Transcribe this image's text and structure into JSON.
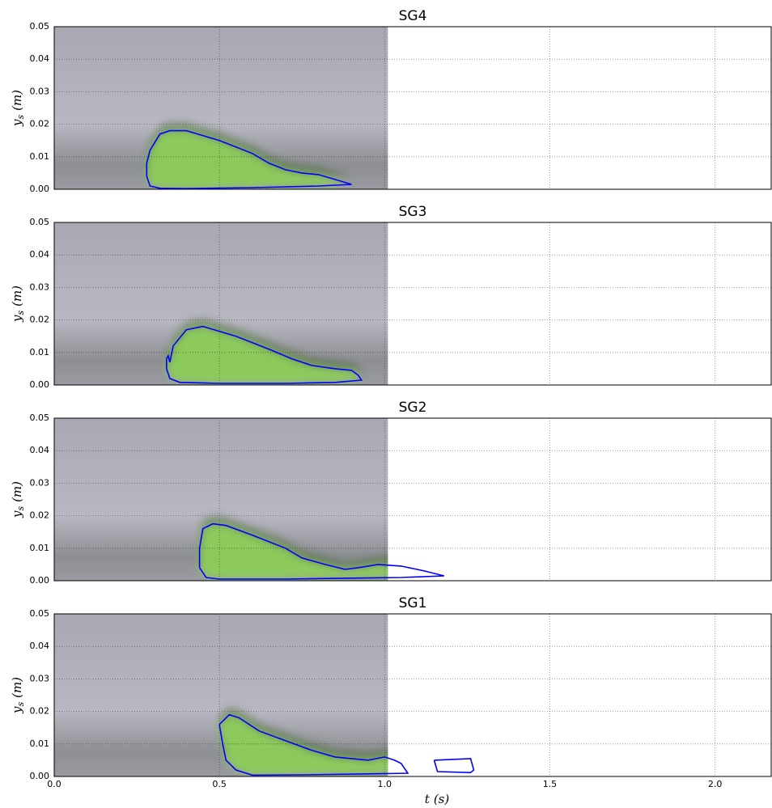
{
  "chart_data": [
    {
      "type": "line",
      "title": "SG4",
      "ylabel": "y",
      "ylabel_sub": "s",
      "ylabel_unit": "(m)",
      "xlim": [
        0,
        2.17
      ],
      "ylim": [
        0,
        0.05
      ],
      "image_xlim": [
        0,
        1.01
      ],
      "grid": true,
      "xticks": [
        0,
        0.5,
        1,
        1.5,
        2
      ],
      "yticks": [
        {
          "value": 0,
          "label": "0.00"
        },
        {
          "value": 0.01,
          "label": "0.01"
        },
        {
          "value": 0.02,
          "label": "0.02"
        },
        {
          "value": 0.03,
          "label": "0.03"
        },
        {
          "value": 0.04,
          "label": "0.04"
        },
        {
          "value": 0.05,
          "label": "0.05"
        }
      ],
      "x": [
        0.28,
        0.29,
        0.32,
        0.35,
        0.4,
        0.5,
        0.55,
        0.6,
        0.65,
        0.7,
        0.75,
        0.8,
        0.85,
        0.9,
        0.8,
        0.6,
        0.4,
        0.32,
        0.29,
        0.28,
        0.28
      ],
      "series": [
        {
          "color": "#0000ff",
          "values": [
            0.008,
            0.012,
            0.017,
            0.018,
            0.018,
            0.015,
            0.013,
            0.011,
            0.008,
            0.006,
            0.005,
            0.0045,
            0.003,
            0.0015,
            0.001,
            0.0005,
            0.0002,
            0.0003,
            0.001,
            0.004,
            0.008
          ]
        }
      ]
    },
    {
      "type": "line",
      "title": "SG3",
      "ylabel": "y",
      "ylabel_sub": "s",
      "ylabel_unit": "(m)",
      "xlim": [
        0,
        2.17
      ],
      "ylim": [
        0,
        0.05
      ],
      "image_xlim": [
        0,
        1.01
      ],
      "grid": true,
      "xticks": [
        0,
        0.5,
        1,
        1.5,
        2
      ],
      "yticks": [
        {
          "value": 0,
          "label": "0.00"
        },
        {
          "value": 0.01,
          "label": "0.01"
        },
        {
          "value": 0.02,
          "label": "0.02"
        },
        {
          "value": 0.03,
          "label": "0.03"
        },
        {
          "value": 0.04,
          "label": "0.04"
        },
        {
          "value": 0.05,
          "label": "0.05"
        }
      ],
      "x": [
        0.34,
        0.345,
        0.35,
        0.36,
        0.4,
        0.45,
        0.55,
        0.65,
        0.72,
        0.78,
        0.85,
        0.9,
        0.92,
        0.93,
        0.85,
        0.7,
        0.5,
        0.38,
        0.35,
        0.34,
        0.34
      ],
      "series": [
        {
          "color": "#0000ff",
          "values": [
            0.008,
            0.009,
            0.007,
            0.012,
            0.017,
            0.018,
            0.015,
            0.011,
            0.008,
            0.006,
            0.005,
            0.0045,
            0.003,
            0.0015,
            0.0008,
            0.0005,
            0.0005,
            0.0008,
            0.002,
            0.005,
            0.008
          ]
        }
      ]
    },
    {
      "type": "line",
      "title": "SG2",
      "ylabel": "y",
      "ylabel_sub": "s",
      "ylabel_unit": "(m)",
      "xlim": [
        0,
        2.17
      ],
      "ylim": [
        0,
        0.05
      ],
      "image_xlim": [
        0,
        1.01
      ],
      "grid": true,
      "xticks": [
        0,
        0.5,
        1,
        1.5,
        2
      ],
      "yticks": [
        {
          "value": 0,
          "label": "0.00"
        },
        {
          "value": 0.01,
          "label": "0.01"
        },
        {
          "value": 0.02,
          "label": "0.02"
        },
        {
          "value": 0.03,
          "label": "0.03"
        },
        {
          "value": 0.04,
          "label": "0.04"
        },
        {
          "value": 0.05,
          "label": "0.05"
        }
      ],
      "x": [
        0.44,
        0.45,
        0.48,
        0.52,
        0.6,
        0.7,
        0.75,
        0.82,
        0.88,
        0.92,
        0.98,
        1.05,
        1.12,
        1.18,
        1.05,
        0.9,
        0.7,
        0.5,
        0.46,
        0.44,
        0.44
      ],
      "series": [
        {
          "color": "#0000ff",
          "values": [
            0.01,
            0.016,
            0.0175,
            0.017,
            0.014,
            0.01,
            0.007,
            0.005,
            0.0035,
            0.004,
            0.005,
            0.0045,
            0.003,
            0.0015,
            0.001,
            0.0008,
            0.0005,
            0.0005,
            0.001,
            0.004,
            0.01
          ]
        }
      ]
    },
    {
      "type": "line",
      "title": "SG1",
      "ylabel": "y",
      "ylabel_sub": "s",
      "ylabel_unit": "(m)",
      "xlabel": "t",
      "xlabel_unit": "(s)",
      "xlim": [
        0,
        2.17
      ],
      "ylim": [
        0,
        0.05
      ],
      "image_xlim": [
        0,
        1.01
      ],
      "grid": true,
      "xticks": [
        {
          "value": 0,
          "label": "0.0"
        },
        0.5,
        {
          "value": 1,
          "label": "1.0"
        },
        1.5,
        {
          "value": 2,
          "label": "2.0"
        }
      ],
      "yticks": [
        {
          "value": 0,
          "label": "0.00"
        },
        {
          "value": 0.01,
          "label": "0.01"
        },
        {
          "value": 0.02,
          "label": "0.02"
        },
        {
          "value": 0.03,
          "label": "0.03"
        },
        {
          "value": 0.04,
          "label": "0.04"
        },
        {
          "value": 0.05,
          "label": "0.05"
        }
      ],
      "x": [
        0.5,
        0.53,
        0.56,
        0.62,
        0.7,
        0.78,
        0.85,
        0.95,
        1.0,
        1.03,
        1.05,
        1.07,
        0.95,
        0.75,
        0.6,
        0.55,
        0.52,
        0.51,
        0.5,
        null,
        1.15,
        1.26,
        1.27,
        1.26,
        1.16,
        1.15
      ],
      "series": [
        {
          "color": "#0000ff",
          "values": [
            0.016,
            0.019,
            0.018,
            0.014,
            0.011,
            0.008,
            0.006,
            0.005,
            0.006,
            0.005,
            0.004,
            0.001,
            0.0008,
            0.0005,
            0.0004,
            0.002,
            0.005,
            0.01,
            0.016,
            null,
            0.005,
            0.0055,
            0.002,
            0.0012,
            0.0015,
            0.005
          ]
        }
      ]
    }
  ]
}
